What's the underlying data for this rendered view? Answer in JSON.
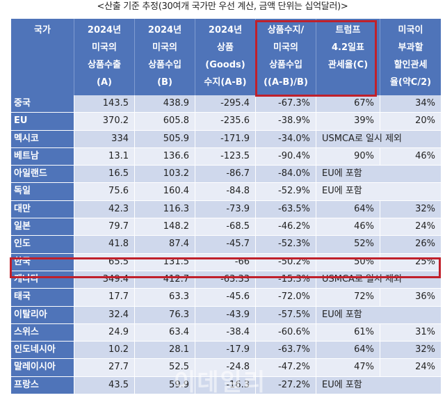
{
  "caption": "<산출 기준 추정(30여개 국가만 우선 계산, 금액 단위는 십억달러)>",
  "headers": [
    "국가",
    "2024년\n미국의\n상품수출\n(A)",
    "2024년\n미국의\n상품수입\n(B)",
    "2024년\n상품\n(Goods)\n수지(A-B)",
    "상품수지/\n미국의\n상품수입\n((A-B)/B)",
    "트럼프\n4.2일표\n관세율(C)",
    "미국이\n부과할\n할인관세\n율(약C/2)"
  ],
  "rows": [
    {
      "country": "중국",
      "export": "143.5",
      "import": "438.9",
      "balance": "-295.4",
      "ratio": "-67.3%",
      "tariff": "67%",
      "reciprocal": "34%",
      "note": ""
    },
    {
      "country": "EU",
      "export": "370.2",
      "import": "605.8",
      "balance": "-235.6",
      "ratio": "-38.9%",
      "tariff": "39%",
      "reciprocal": "20%",
      "note": ""
    },
    {
      "country": "멕시코",
      "export": "334",
      "import": "505.9",
      "balance": "-171.9",
      "ratio": "-34.0%",
      "tariff": "",
      "reciprocal": "",
      "note": "USMCA로 일시 제외"
    },
    {
      "country": "베트남",
      "export": "13.1",
      "import": "136.6",
      "balance": "-123.5",
      "ratio": "-90.4%",
      "tariff": "90%",
      "reciprocal": "46%",
      "note": ""
    },
    {
      "country": "아일랜드",
      "export": "16.5",
      "import": "103.2",
      "balance": "-86.7",
      "ratio": "-84.0%",
      "tariff": "",
      "reciprocal": "",
      "note": "EU에 포함"
    },
    {
      "country": "독일",
      "export": "75.6",
      "import": "160.4",
      "balance": "-84.8",
      "ratio": "-52.9%",
      "tariff": "",
      "reciprocal": "",
      "note": "EU에 포함"
    },
    {
      "country": "대만",
      "export": "42.3",
      "import": "116.3",
      "balance": "-73.9",
      "ratio": "-63.5%",
      "tariff": "64%",
      "reciprocal": "32%",
      "note": ""
    },
    {
      "country": "일본",
      "export": "79.7",
      "import": "148.2",
      "balance": "-68.5",
      "ratio": "-46.2%",
      "tariff": "46%",
      "reciprocal": "24%",
      "note": ""
    },
    {
      "country": "인도",
      "export": "41.8",
      "import": "87.4",
      "balance": "-45.7",
      "ratio": "-52.3%",
      "tariff": "52%",
      "reciprocal": "26%",
      "note": ""
    },
    {
      "country": "한국",
      "export": "65.5",
      "import": "131.5",
      "balance": "-66",
      "ratio": "-50.2%",
      "tariff": "50%",
      "reciprocal": "25%",
      "note": ""
    },
    {
      "country": "캐나다",
      "export": "349.4",
      "import": "412.7",
      "balance": "-63.33",
      "ratio": "-15.3%",
      "tariff": "",
      "reciprocal": "",
      "note": "USMCA로 일시 제외"
    },
    {
      "country": "태국",
      "export": "17.7",
      "import": "63.3",
      "balance": "-45.6",
      "ratio": "-72.0%",
      "tariff": "72%",
      "reciprocal": "36%",
      "note": ""
    },
    {
      "country": "이탈리아",
      "export": "32.4",
      "import": "76.3",
      "balance": "-43.9",
      "ratio": "-57.5%",
      "tariff": "",
      "reciprocal": "",
      "note": "EU에 포함"
    },
    {
      "country": "스위스",
      "export": "24.9",
      "import": "63.4",
      "balance": "-38.4",
      "ratio": "-60.6%",
      "tariff": "61%",
      "reciprocal": "31%",
      "note": ""
    },
    {
      "country": "인도네시아",
      "export": "10.2",
      "import": "28.1",
      "balance": "-17.9",
      "ratio": "-63.7%",
      "tariff": "64%",
      "reciprocal": "32%",
      "note": ""
    },
    {
      "country": "말레이시아",
      "export": "27.7",
      "import": "52.5",
      "balance": "-24.8",
      "ratio": "-47.2%",
      "tariff": "47%",
      "reciprocal": "24%",
      "note": ""
    },
    {
      "country": "프랑스",
      "export": "43.5",
      "import": "59.9",
      "balance": "-16.3",
      "ratio": "-27.2%",
      "tariff": "",
      "reciprocal": "",
      "note": "EU에 포함"
    }
  ],
  "watermark": "이데일리",
  "colors": {
    "header": "#4f74b9",
    "highlight": "#c0202a"
  }
}
